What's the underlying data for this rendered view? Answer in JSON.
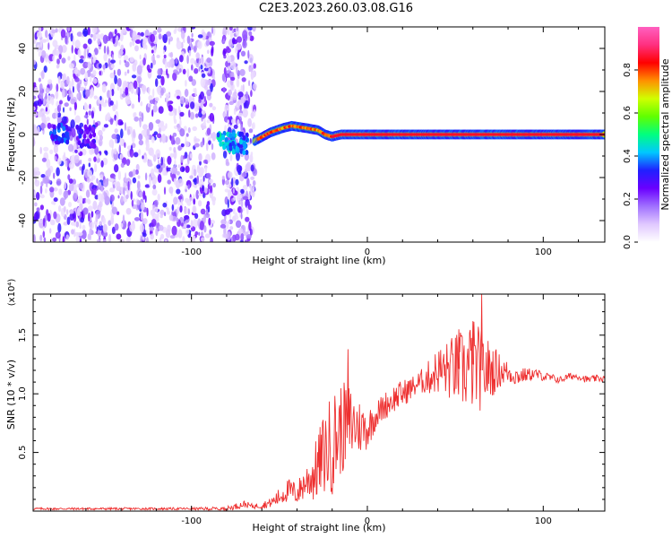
{
  "figure": {
    "title": "C2E3.2023.260.03.08.G16"
  },
  "chart_data": [
    {
      "type": "heatmap",
      "title": "C2E3.2023.260.03.08.G16",
      "xlabel": "Height of straight line (km)",
      "ylabel": "Frequency (Hz)",
      "xlim": [
        -190,
        135
      ],
      "ylim": [
        -50,
        50
      ],
      "xticks": [
        -100,
        0,
        100
      ],
      "yticks": [
        -40,
        -20,
        0,
        20,
        40
      ],
      "colorbar": {
        "label": "Normalized spectral amplitude",
        "range": [
          0.0,
          1.0
        ],
        "ticks": [
          "0.0",
          "0.2",
          "0.4",
          "0.6",
          "0.8"
        ],
        "colormap": [
          "#ffffff",
          "#e0c8ff",
          "#a070ff",
          "#6a00ff",
          "#2020ff",
          "#00c8ff",
          "#00ff80",
          "#60ff00",
          "#d0ff00",
          "#ff9000",
          "#ff0000",
          "#ff3080",
          "#ff60c0"
        ]
      },
      "regions": {
        "noise_band_1": {
          "x": [
            -190,
            -87
          ]
        },
        "noise_band_2": {
          "x": [
            -82,
            -64
          ]
        },
        "signal_start": -64,
        "signal_end": 135
      },
      "signal_trace": {
        "x": [
          -64,
          -55,
          -48,
          -43,
          -35,
          -28,
          -24,
          -20,
          -15,
          -10,
          0,
          20,
          40,
          64,
          66,
          80,
          100,
          120,
          135
        ],
        "y": [
          -3,
          1,
          3,
          4,
          3,
          2,
          0,
          -1,
          0,
          0,
          0,
          0,
          0,
          0,
          0,
          0,
          0,
          0,
          0
        ]
      },
      "clusters": [
        {
          "x": -175,
          "y": 0,
          "amplitude": 0.25
        },
        {
          "x": -160,
          "y": -1,
          "amplitude": 0.2
        },
        {
          "x": -80,
          "y": -3,
          "amplitude": 0.35
        },
        {
          "x": -73,
          "y": -4,
          "amplitude": 0.3
        }
      ]
    },
    {
      "type": "line",
      "xlabel": "Height of straight line (km)",
      "ylabel": "SNR (10 * v/v)",
      "yscale_label": "(x10⁴)",
      "xlim": [
        -190,
        135
      ],
      "ylim": [
        0,
        1.85
      ],
      "xticks": [
        -100,
        0,
        100
      ],
      "yticks": [
        0.5,
        1.0,
        1.5
      ],
      "color": "#ee3030",
      "series": [
        {
          "x": [
            -190,
            -160,
            -130,
            -100,
            -80,
            -70,
            -65,
            -60,
            -55,
            -50,
            -45,
            -40,
            -35,
            -30,
            -25,
            -20,
            -15,
            -10,
            -5,
            0,
            5,
            10,
            15,
            20,
            25,
            30,
            35,
            40,
            45,
            50,
            55,
            60,
            65,
            70,
            75,
            80,
            85,
            90,
            95,
            100,
            105,
            110,
            115,
            120,
            125,
            130,
            135
          ],
          "y": [
            0.02,
            0.02,
            0.02,
            0.02,
            0.02,
            0.06,
            0.04,
            0.05,
            0.07,
            0.12,
            0.18,
            0.15,
            0.25,
            0.32,
            0.48,
            0.58,
            0.7,
            0.75,
            0.72,
            0.7,
            0.82,
            0.9,
            0.96,
            1.0,
            1.05,
            1.1,
            1.14,
            1.2,
            1.2,
            1.22,
            1.2,
            1.25,
            1.2,
            1.2,
            1.2,
            1.18,
            1.15,
            1.16,
            1.17,
            1.15,
            1.13,
            1.12,
            1.15,
            1.15,
            1.12,
            1.13,
            1.13
          ],
          "amp": [
            0.01,
            0.01,
            0.01,
            0.01,
            0.02,
            0.03,
            0.02,
            0.03,
            0.04,
            0.08,
            0.1,
            0.1,
            0.15,
            0.25,
            0.35,
            0.45,
            0.4,
            0.35,
            0.25,
            0.18,
            0.12,
            0.12,
            0.12,
            0.12,
            0.1,
            0.1,
            0.15,
            0.2,
            0.25,
            0.3,
            0.35,
            0.4,
            0.35,
            0.25,
            0.15,
            0.1,
            0.08,
            0.06,
            0.05,
            0.04,
            0.04,
            0.03,
            0.03,
            0.03,
            0.03,
            0.03,
            0.03
          ]
        }
      ],
      "peaks": [
        {
          "x": -11,
          "y": 1.38
        },
        {
          "x": 65,
          "y": 1.85
        },
        {
          "x": 60,
          "y": 1.62
        },
        {
          "x": 52,
          "y": 1.55
        }
      ]
    }
  ]
}
